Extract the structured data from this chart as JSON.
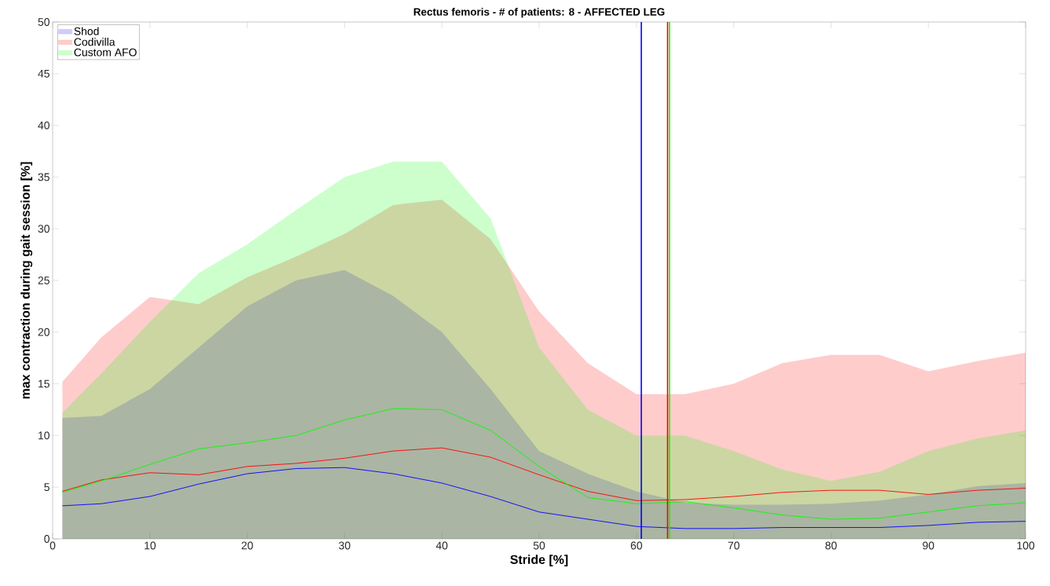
{
  "chart_data": {
    "type": "line",
    "title": "Rectus femoris - # of patients: 8 - AFFECTED LEG",
    "xlabel": "Stride [%]",
    "ylabel": "max contraction during gait session [%]",
    "x": [
      1,
      5,
      10,
      15,
      20,
      25,
      30,
      35,
      40,
      45,
      50,
      55,
      60,
      65,
      70,
      75,
      80,
      85,
      90,
      95,
      100
    ],
    "series": [
      {
        "name": "Shod",
        "color": "#0000ff",
        "values": [
          3.2,
          3.4,
          4.1,
          5.3,
          6.3,
          6.8,
          6.9,
          6.3,
          5.4,
          4.1,
          2.6,
          1.9,
          1.2,
          1.0,
          1.0,
          1.1,
          1.1,
          1.1,
          1.3,
          1.6,
          1.7
        ],
        "lower": [
          0,
          0,
          0,
          0,
          0,
          0,
          0,
          0,
          0,
          0,
          0,
          0,
          0,
          0,
          0,
          0,
          0,
          0,
          0,
          0,
          0
        ],
        "upper": [
          11.7,
          11.9,
          14.5,
          18.5,
          22.5,
          25,
          26,
          23.5,
          20,
          14.5,
          8.5,
          6.3,
          4.6,
          3.5,
          3.3,
          3.3,
          3.4,
          3.7,
          4.3,
          5.1,
          5.4
        ]
      },
      {
        "name": "Codivilla",
        "color": "#ff0000",
        "values": [
          4.6,
          5.7,
          6.4,
          6.2,
          7.0,
          7.3,
          7.8,
          8.5,
          8.8,
          7.9,
          6.2,
          4.6,
          3.7,
          3.8,
          4.1,
          4.5,
          4.7,
          4.7,
          4.3,
          4.7,
          4.9
        ],
        "lower": [
          0,
          0,
          0,
          0,
          0,
          0,
          0,
          0,
          0,
          0,
          0,
          0,
          0,
          0,
          0,
          0,
          0,
          0,
          0,
          0,
          0
        ],
        "upper": [
          15.2,
          19.5,
          23.4,
          22.7,
          25.3,
          27.3,
          29.5,
          32.3,
          32.8,
          29,
          22,
          17,
          14,
          14,
          15,
          17,
          17.8,
          17.8,
          16.2,
          17.2,
          18
        ]
      },
      {
        "name": "Custom AFO",
        "color": "#00ff00",
        "values": [
          4.5,
          5.6,
          7.2,
          8.7,
          9.3,
          10,
          11.5,
          12.6,
          12.5,
          10.5,
          7,
          4,
          3.4,
          3.6,
          3,
          2.3,
          1.9,
          2,
          2.6,
          3.2,
          3.5
        ],
        "lower": [
          0,
          0,
          0,
          0,
          0,
          0,
          0,
          0,
          0,
          0,
          0,
          0,
          0,
          0,
          0,
          0,
          0,
          0,
          0,
          0,
          0
        ],
        "upper": [
          12.2,
          16,
          21,
          25.7,
          28.5,
          31.8,
          35,
          36.5,
          36.5,
          31,
          18.5,
          12.5,
          10,
          10,
          8.5,
          6.7,
          5.6,
          6.5,
          8.5,
          9.7,
          10.5
        ]
      }
    ],
    "ref_lines": [
      {
        "axis": "x",
        "value": 60.5,
        "color": "#0000ff"
      },
      {
        "axis": "x",
        "value": 63.2,
        "color": "#ff0000"
      },
      {
        "axis": "x",
        "value": 63.4,
        "color": "#00ff00"
      }
    ],
    "xlim": [
      0,
      100
    ],
    "ylim": [
      0,
      50
    ],
    "xticks": [
      0,
      10,
      20,
      30,
      40,
      50,
      60,
      70,
      80,
      90,
      100
    ],
    "yticks": [
      0,
      5,
      10,
      15,
      20,
      25,
      30,
      35,
      40,
      45,
      50
    ],
    "legend": "top left",
    "grid": false,
    "marker": "none",
    "line_style": "solid"
  }
}
